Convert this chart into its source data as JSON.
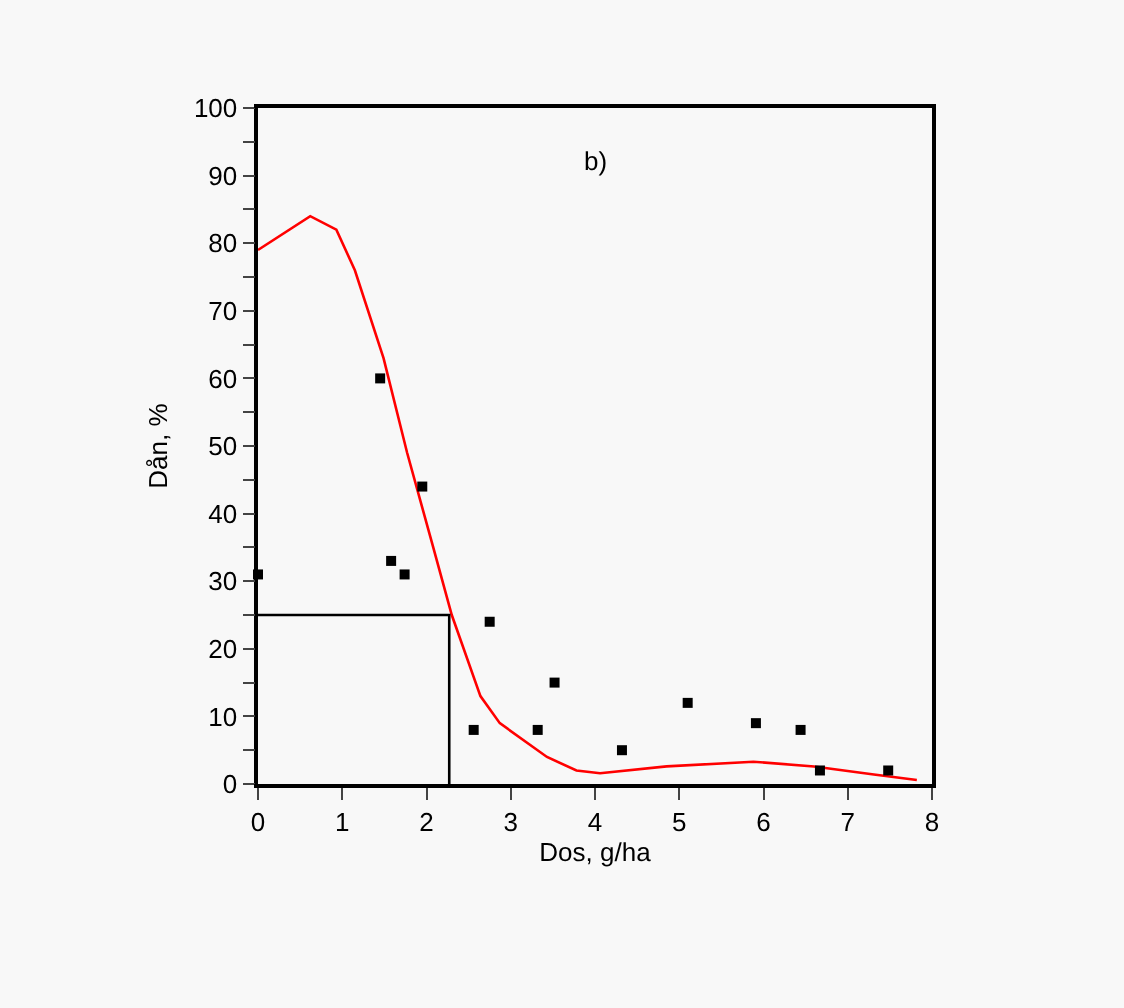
{
  "chart_data": {
    "type": "scatter",
    "xlabel": "Dos, g/ha",
    "ylabel": "Dån, %",
    "annotations": [
      "b)"
    ],
    "xlim": [
      0,
      8
    ],
    "xticks": [
      0,
      1,
      2,
      3,
      4,
      5,
      6,
      7,
      8
    ],
    "ylim": [
      0,
      100
    ],
    "yticks": [
      0,
      {
        "value": 5,
        "label": null
      },
      10,
      {
        "value": 15,
        "label": null
      },
      20,
      {
        "value": 25,
        "label": null
      },
      30,
      {
        "value": 35,
        "label": null
      },
      40,
      {
        "value": 45,
        "label": null
      },
      50,
      {
        "value": 55,
        "label": null
      },
      60,
      {
        "value": 65,
        "label": null
      },
      70,
      {
        "value": 75,
        "label": null
      },
      80,
      {
        "value": 85,
        "label": null
      },
      90,
      {
        "value": 95,
        "label": null
      },
      100
    ],
    "grid": false,
    "series": [
      {
        "marker": "square",
        "color": "#000000",
        "x": [
          0,
          1.45,
          1.58,
          1.74,
          1.95,
          2.56,
          2.75,
          3.32,
          3.52,
          4.32,
          5.1,
          5.91,
          6.44,
          6.67,
          7.48
        ],
        "values": [
          31,
          60,
          33,
          31,
          44,
          8,
          24,
          8,
          15,
          5,
          12,
          9,
          8,
          2,
          2
        ]
      },
      {
        "type": "line",
        "marker": "none",
        "color": "#ff0000",
        "line_style": "solid",
        "x": [
          0,
          0.62,
          0.93,
          1.15,
          1.49,
          1.77,
          2.08,
          2.3,
          2.64,
          2.87,
          3.43,
          3.78,
          4.06,
          4.85,
          5.88,
          6.6,
          7.31,
          7.82
        ],
        "values": [
          79,
          84,
          82,
          76,
          63,
          49,
          35,
          25,
          13,
          9,
          4,
          2,
          1.6,
          2.6,
          3.3,
          2.6,
          1.4,
          0.6
        ]
      },
      {
        "type": "line",
        "marker": "none",
        "color": "#000000",
        "line_style": "solid",
        "x": [
          0,
          2.27,
          2.27
        ],
        "values": [
          25,
          25,
          0
        ]
      }
    ]
  }
}
